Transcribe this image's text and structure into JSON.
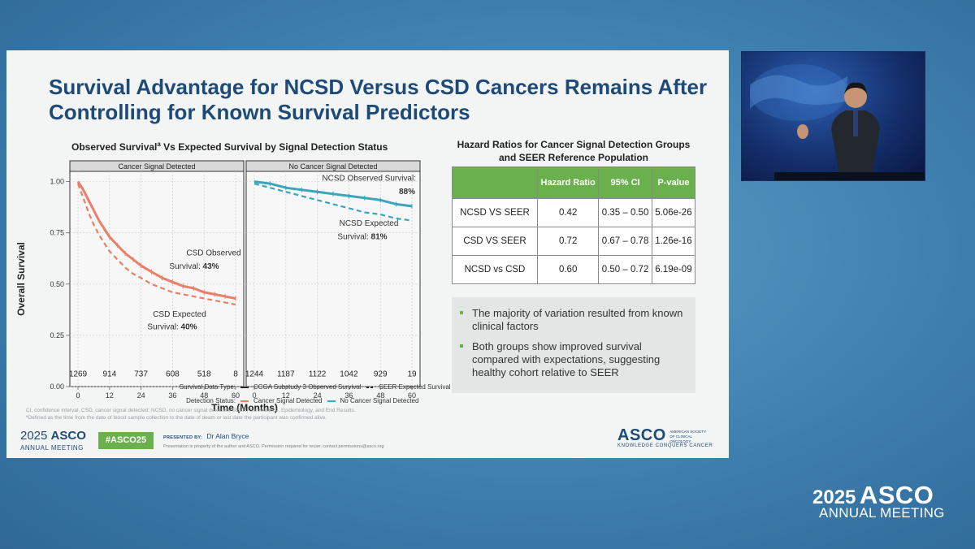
{
  "slide": {
    "title": "Survival Advantage for NCSD Versus CSD Cancers Remains After Controlling for Known Survival Predictors",
    "chart_title": "Observed Survival",
    "chart_title_sup": "a",
    "chart_title_rest": " Vs Expected Survival by Signal Detection Status",
    "legend": {
      "type_label": "Survival Data Type:",
      "type_items": [
        "CCGA Substudy 3 Observed Survival",
        "SEER Expected Survival"
      ],
      "status_label": "Detection Status:",
      "status_items": [
        "Cancer Signal Detected",
        "No Cancer Signal Detected"
      ]
    },
    "footnote_1": "CI, confidence interval; CSD, cancer signal detected; NCSD, no cancer signal detected; SEER, Surveillance, Epidemiology, and End Results.",
    "footnote_2": "ªDefined as the time from the date of blood sample collection to the date of death or last date the participant was confirmed alive.",
    "hr_title": "Hazard Ratios for Cancer Signal Detection Groups and SEER Reference Population",
    "hr_table": {
      "headers": [
        "",
        "Hazard Ratio",
        "95% CI",
        "P-value"
      ],
      "rows": [
        [
          "NCSD VS SEER",
          "0.42",
          "0.35 – 0.50",
          "5.06e-26"
        ],
        [
          "CSD VS SEER",
          "0.72",
          "0.67 – 0.78",
          "1.26e-16"
        ],
        [
          "NCSD vs CSD",
          "0.60",
          "0.50 – 0.72",
          "6.19e-09"
        ]
      ]
    },
    "bullets": [
      "The majority of variation resulted from known clinical factors",
      "Both groups show improved survival compared with expectations, suggesting healthy cohort relative to SEER"
    ],
    "footer": {
      "logo_year": "2025",
      "logo_asco": "ASCO",
      "logo_sub": "ANNUAL MEETING",
      "hashtag": "#ASCO25",
      "presented_by": "PRESENTED BY:",
      "presenter": "Dr Alan Bryce",
      "notice": "Presentation is property of the author and ASCO. Permission required for reuse; contact permissions@asco.org",
      "asco_brand": "ASCO",
      "asco_small": "AMERICAN SOCIETY OF CLINICAL ONCOLOGY",
      "asco_tagline": "KNOWLEDGE CONQUERS CANCER"
    }
  },
  "corner_logo": {
    "year": "2025",
    "asco": "ASCO",
    "annual_meeting": "ANNUAL MEETING"
  },
  "colors": {
    "title": "#1e4a78",
    "csd": "#e8806a",
    "ncsd": "#3aa6bc",
    "table_header": "#6ab04c"
  },
  "chart_data": {
    "type": "line",
    "ylabel": "Overall Survival",
    "xlabel": "Time (Months)",
    "ylim": [
      0,
      1.05
    ],
    "xlim": [
      0,
      60
    ],
    "y_ticks": [
      "0.00",
      "0.25",
      "0.50",
      "0.75",
      "1.00"
    ],
    "x_ticks": [
      "0",
      "12",
      "24",
      "36",
      "48",
      "60"
    ],
    "panels": [
      {
        "name": "Cancer Signal Detected",
        "observed": {
          "x": [
            0,
            2,
            4,
            6,
            8,
            10,
            12,
            15,
            18,
            21,
            24,
            28,
            32,
            36,
            40,
            44,
            48,
            52,
            56,
            60
          ],
          "values": [
            1.0,
            0.96,
            0.91,
            0.86,
            0.81,
            0.77,
            0.73,
            0.69,
            0.65,
            0.62,
            0.59,
            0.56,
            0.53,
            0.51,
            0.49,
            0.48,
            0.46,
            0.45,
            0.44,
            0.43
          ]
        },
        "expected": {
          "x": [
            0,
            2,
            4,
            6,
            8,
            10,
            12,
            15,
            18,
            21,
            24,
            28,
            32,
            36,
            40,
            44,
            48,
            52,
            56,
            60
          ],
          "values": [
            0.99,
            0.92,
            0.85,
            0.79,
            0.74,
            0.7,
            0.66,
            0.62,
            0.58,
            0.55,
            0.53,
            0.5,
            0.48,
            0.46,
            0.45,
            0.44,
            0.43,
            0.42,
            0.41,
            0.4
          ]
        },
        "labels": {
          "observed": "CSD Observed Survival:",
          "observed_value": "43%",
          "expected": "CSD Expected Survival:",
          "expected_value": "40%"
        },
        "at_risk": [
          "1269",
          "914",
          "737",
          "608",
          "518",
          "8"
        ]
      },
      {
        "name": "No Cancer Signal Detected",
        "observed": {
          "x": [
            0,
            6,
            12,
            18,
            24,
            30,
            36,
            42,
            48,
            54,
            60
          ],
          "values": [
            1.0,
            0.99,
            0.97,
            0.96,
            0.95,
            0.94,
            0.93,
            0.92,
            0.91,
            0.89,
            0.88
          ]
        },
        "expected": {
          "x": [
            0,
            6,
            12,
            18,
            24,
            30,
            36,
            42,
            48,
            54,
            60
          ],
          "values": [
            0.99,
            0.97,
            0.95,
            0.93,
            0.91,
            0.89,
            0.87,
            0.85,
            0.84,
            0.82,
            0.81
          ]
        },
        "labels": {
          "observed": "NCSD Observed Survival:",
          "observed_value": "88%",
          "expected": "NCSD Expected Survival:",
          "expected_value": "81%"
        },
        "at_risk": [
          "1244",
          "1187",
          "1122",
          "1042",
          "929",
          "19"
        ]
      }
    ]
  }
}
